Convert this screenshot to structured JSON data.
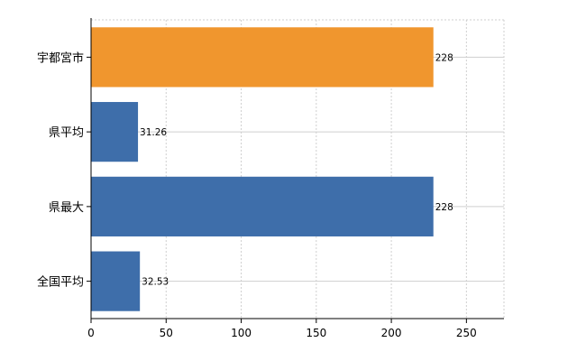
{
  "chart_data": {
    "type": "bar",
    "orientation": "horizontal",
    "categories": [
      "宇都宮市",
      "県平均",
      "県最大",
      "全国平均"
    ],
    "values": [
      228,
      31.26,
      228,
      32.53
    ],
    "data_labels": [
      "228",
      "31.26",
      "228",
      "32.53"
    ],
    "bar_colors": [
      "#F0962E",
      "#3E6EAA",
      "#3E6EAA",
      "#3E6EAA"
    ],
    "xlim": [
      0,
      275
    ],
    "xticks": [
      0,
      50,
      100,
      150,
      200,
      250
    ],
    "grid": true,
    "title": "",
    "xlabel": "",
    "ylabel": ""
  }
}
